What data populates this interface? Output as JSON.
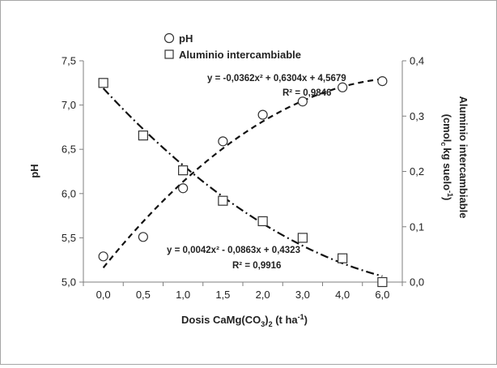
{
  "chart_data": {
    "type": "scatter",
    "categories": [
      "0,0",
      "0,5",
      "1,0",
      "1,5",
      "2,0",
      "3,0",
      "4,0",
      "6,0"
    ],
    "series": [
      {
        "name": "pH",
        "axis": "left",
        "marker": "circle",
        "values": [
          5.29,
          5.51,
          6.06,
          6.59,
          6.89,
          7.04,
          7.2,
          7.27
        ],
        "trendline": {
          "type": "poly2",
          "a": -0.0362,
          "b": 0.6304,
          "c": 4.5679,
          "style": "dash"
        },
        "equation": "y = -0,0362x² + 0,6304x + 4,5679",
        "r2": "R² = 0,9846"
      },
      {
        "name": "Aluminio intercambiable",
        "axis": "right",
        "marker": "square",
        "values": [
          0.36,
          0.265,
          0.202,
          0.147,
          0.11,
          0.08,
          0.043,
          0.0
        ],
        "trendline": {
          "type": "poly2",
          "a": 0.0042,
          "b": -0.0863,
          "c": 0.4323,
          "style": "dashdot"
        },
        "equation": "y = 0,0042x² - 0,0863x + 0,4323",
        "r2": "R² = 0,9916"
      }
    ],
    "xlabel": "Dosis CaMg(CO3)2 (t ha-1)",
    "xlabel_parts": {
      "a": "Dosis CaMg(CO",
      "sub1": "3",
      "b": ")",
      "sub2": "2",
      "c": " (t ha",
      "sup": "-1",
      "d": ")"
    },
    "ylabel": "pH",
    "ylim": [
      5.0,
      7.5
    ],
    "yticks": [
      "5,0",
      "5,5",
      "6,0",
      "6,5",
      "7,0",
      "7,5"
    ],
    "y2label_line1": "Aluminio intercambiable",
    "y2label_line2_parts": {
      "a": "(cmol",
      "sub": "c",
      "b": "kg suelo",
      "sup": "-1",
      "c": ")"
    },
    "y2lim": [
      0.0,
      0.4
    ],
    "y2ticks": [
      "0,0",
      "0,1",
      "0,2",
      "0,3",
      "0,4"
    ],
    "legend_position": "top-left",
    "grid": false
  }
}
